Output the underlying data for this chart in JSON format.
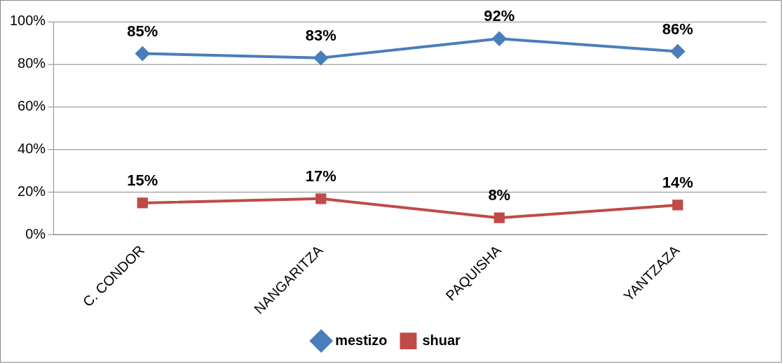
{
  "chart_data": {
    "type": "line",
    "categories": [
      "C. CONDOR",
      "NANGARITZA",
      "PAQUISHA",
      "YANTZAZA"
    ],
    "series": [
      {
        "name": "mestizo",
        "color": "#4a7ebb",
        "marker": "diamond",
        "values": [
          85,
          83,
          92,
          86
        ],
        "value_labels": [
          "85%",
          "83%",
          "92%",
          "86%"
        ]
      },
      {
        "name": "shuar",
        "color": "#be4b48",
        "marker": "square",
        "values": [
          15,
          17,
          8,
          14
        ],
        "value_labels": [
          "15%",
          "17%",
          "8%",
          "14%"
        ]
      }
    ],
    "ylim": [
      0,
      100
    ],
    "yticks": [
      {
        "value": 0,
        "label": "0%"
      },
      {
        "value": 20,
        "label": "20%"
      },
      {
        "value": 40,
        "label": "40%"
      },
      {
        "value": 60,
        "label": "60%"
      },
      {
        "value": 80,
        "label": "80%"
      },
      {
        "value": 100,
        "label": "100%"
      }
    ],
    "grid": "y",
    "legend": "bottom"
  }
}
